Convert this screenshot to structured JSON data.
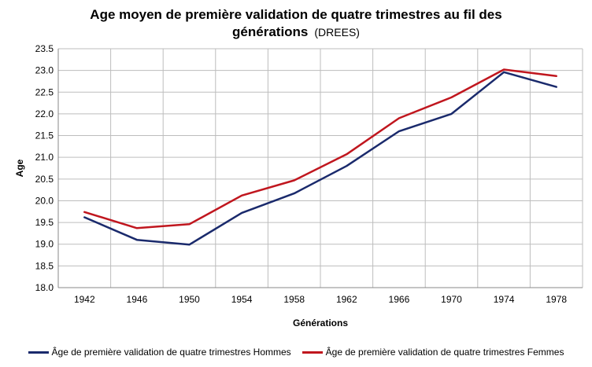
{
  "title": {
    "line1": "Age moyen de première validation de quatre trimestres au fil des",
    "line2": "générations",
    "suffix": "(DREES)"
  },
  "colors": {
    "hommes": "#1a2a6c",
    "femmes": "#c0161e",
    "grid": "#bdbdbd",
    "axis": "#888888"
  },
  "chart_data": {
    "type": "line",
    "title": "Age moyen de première validation de quatre trimestres au fil des générations (DREES)",
    "xlabel": "Générations",
    "ylabel": "Age",
    "categories": [
      "1942",
      "1946",
      "1950",
      "1954",
      "1958",
      "1962",
      "1966",
      "1970",
      "1974",
      "1978"
    ],
    "ylim": [
      18.0,
      23.5
    ],
    "yticks": [
      "18.0",
      "18.5",
      "19.0",
      "19.5",
      "20.0",
      "20.5",
      "21.0",
      "21.5",
      "22.0",
      "22.5",
      "23.0",
      "23.5"
    ],
    "grid": true,
    "legend_position": "bottom",
    "series": [
      {
        "name": "Âge de première validation de quatre trimestres Hommes",
        "color": "#1a2a6c",
        "values": [
          19.62,
          19.1,
          18.99,
          19.72,
          20.17,
          20.8,
          21.6,
          22.0,
          22.96,
          22.62
        ]
      },
      {
        "name": "Âge de première validation de quatre trimestres Femmes",
        "color": "#c0161e",
        "values": [
          19.74,
          19.37,
          19.46,
          20.12,
          20.47,
          21.07,
          21.9,
          22.38,
          23.02,
          22.87
        ]
      }
    ]
  }
}
